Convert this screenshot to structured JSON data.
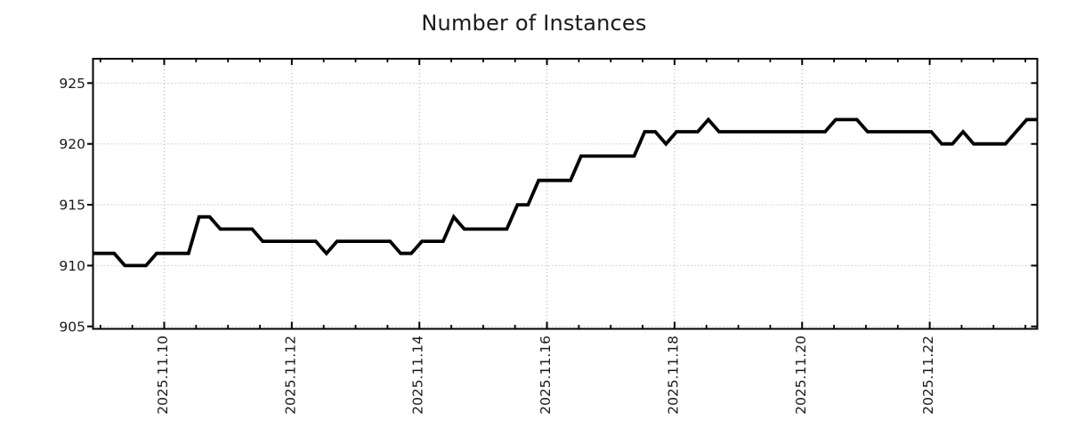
{
  "chart_data": {
    "type": "line",
    "title": "Number of Instances",
    "xlabel": "",
    "ylabel": "",
    "legend": "none",
    "grid": "dotted",
    "background_color": "#ffffff",
    "line_color": "#000000",
    "line_width": 3.8,
    "grid_color": "#ababab",
    "axis_color": "#000000",
    "text_color": "#1a1a1a",
    "y_ticks": [
      905,
      910,
      915,
      920,
      925
    ],
    "y_tick_labels": [
      "905",
      "910",
      "915",
      "920",
      "925"
    ],
    "ylim": [
      904.8,
      927.0
    ],
    "x_tick_labels": [
      "2025.11.10",
      "2025.11.12",
      "2025.11.14",
      "2025.11.16",
      "2025.11.18",
      "2025.11.20",
      "2025.11.22"
    ],
    "x_major_first_point": 6.71,
    "x_points_per_major": 12.025,
    "x_minor_divisions": 4,
    "points_per_day": 6,
    "values": [
      911,
      911,
      911,
      910,
      910,
      910,
      911,
      911,
      911,
      911,
      914,
      914,
      913,
      913,
      913,
      913,
      912,
      912,
      912,
      912,
      912,
      912,
      911,
      912,
      912,
      912,
      912,
      912,
      912,
      911,
      911,
      912,
      912,
      912,
      914,
      913,
      913,
      913,
      913,
      913,
      915,
      915,
      917,
      917,
      917,
      917,
      919,
      919,
      919,
      919,
      919,
      919,
      921,
      921,
      920,
      921,
      921,
      921,
      922,
      921,
      921,
      921,
      921,
      921,
      921,
      921,
      921,
      921,
      921,
      921,
      922,
      922,
      922,
      921,
      921,
      921,
      921,
      921,
      921,
      921,
      920,
      920,
      921,
      920,
      920,
      920,
      920,
      921,
      922,
      922
    ]
  }
}
